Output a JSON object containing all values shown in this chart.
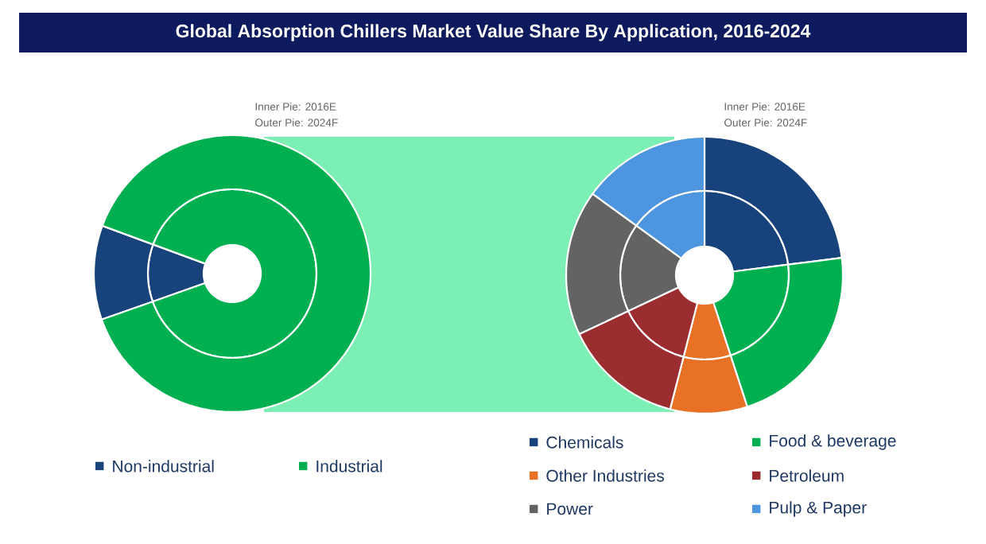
{
  "chart_data": [
    {
      "type": "donut",
      "title": "Global Absorption Chillers Market Value Share By Application, 2016-2024",
      "categories": [
        "Non-industrial",
        "Industrial"
      ],
      "colors": [
        "#17427c",
        "#00b050"
      ],
      "series": [
        {
          "values": [
            11,
            89
          ]
        },
        {
          "values": [
            11,
            89
          ]
        }
      ],
      "annotations": [
        "Inner Pie: 2016E",
        "Outer Pie: 2024F"
      ],
      "legend": "bottom"
    },
    {
      "type": "donut",
      "categories": [
        "Chemicals",
        "Food & beverage",
        "Other Industries",
        "Petroleum",
        "Power",
        "Pulp & Paper"
      ],
      "colors": [
        "#17427c",
        "#00b050",
        "#e97125",
        "#9b2d30",
        "#636363",
        "#4e95e0"
      ],
      "series": [
        {
          "values": [
            23,
            22,
            9,
            14,
            17,
            15
          ]
        },
        {
          "values": [
            23,
            22,
            9,
            14,
            17,
            15
          ]
        }
      ],
      "annotations": [
        "Inner Pie: 2016E",
        "Outer Pie: 2024F"
      ],
      "legend": "bottom"
    }
  ]
}
